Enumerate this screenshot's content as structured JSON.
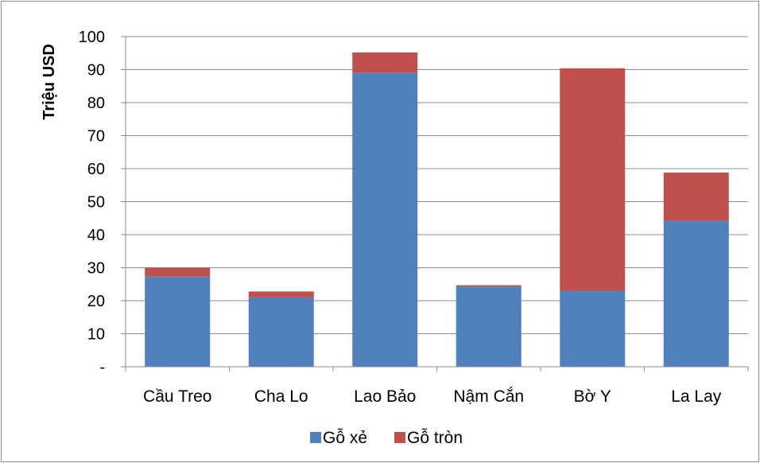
{
  "chart_data": {
    "type": "bar",
    "stacked": true,
    "categories": [
      "Cầu Treo",
      "Cha Lo",
      "Lao Bảo",
      "Nậm Cắn",
      "Bờ Y",
      "La Lay"
    ],
    "series": [
      {
        "name": "Gỗ xẻ",
        "color": "#4f81bd",
        "values": [
          27.3,
          21.0,
          89.0,
          24.3,
          23.0,
          44.2
        ]
      },
      {
        "name": "Gỗ tròn",
        "color": "#c0504d",
        "values": [
          2.7,
          1.8,
          6.2,
          0.4,
          67.4,
          14.6
        ]
      }
    ],
    "ylabel": "Triệu USD",
    "xlabel": "",
    "ylim": [
      0,
      100
    ],
    "y_ticks": [
      {
        "value": 0,
        "label": "-"
      },
      {
        "value": 10,
        "label": "10"
      },
      {
        "value": 20,
        "label": "20"
      },
      {
        "value": 30,
        "label": "30"
      },
      {
        "value": 40,
        "label": "40"
      },
      {
        "value": 50,
        "label": "50"
      },
      {
        "value": 60,
        "label": "60"
      },
      {
        "value": 70,
        "label": "70"
      },
      {
        "value": 80,
        "label": "80"
      },
      {
        "value": 90,
        "label": "90"
      },
      {
        "value": 100,
        "label": "100"
      }
    ],
    "grid": true,
    "legend_position": "bottom"
  }
}
